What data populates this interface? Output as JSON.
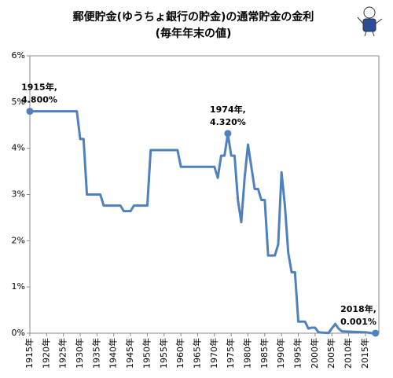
{
  "chart_data": {
    "type": "line",
    "title": "郵便貯金(ゆうちょ銀行の貯金)の通常貯金の金利",
    "subtitle": "(毎年年末の値)",
    "x": [
      1915,
      1929,
      1930,
      1931,
      1932,
      1936,
      1937,
      1942,
      1943,
      1945,
      1946,
      1950,
      1951,
      1959,
      1960,
      1970,
      1971,
      1972,
      1973,
      1974,
      1975,
      1976,
      1977,
      1978,
      1979,
      1980,
      1981,
      1982,
      1983,
      1984,
      1985,
      1986,
      1988,
      1989,
      1990,
      1991,
      1992,
      1993,
      1994,
      1995,
      1997,
      1998,
      1999,
      2000,
      2001,
      2004,
      2006,
      2007,
      2008,
      2015,
      2016,
      2017,
      2018
    ],
    "series": [
      {
        "color": "#4f81bd",
        "values": [
          4.8,
          4.8,
          4.2,
          4.2,
          3.0,
          3.0,
          2.76,
          2.76,
          2.64,
          2.64,
          2.76,
          2.76,
          3.96,
          3.96,
          3.6,
          3.6,
          3.36,
          3.84,
          3.84,
          4.32,
          3.84,
          3.84,
          2.88,
          2.4,
          3.36,
          4.08,
          3.6,
          3.12,
          3.12,
          2.88,
          2.88,
          1.68,
          1.68,
          1.92,
          3.48,
          2.76,
          1.74,
          1.32,
          1.32,
          0.25,
          0.25,
          0.1,
          0.12,
          0.12,
          0.02,
          0.005,
          0.2,
          0.1,
          0.04,
          0.02,
          0.01,
          0.001,
          0.001
        ]
      }
    ],
    "xlim": [
      1915,
      2019
    ],
    "xticks": [
      {
        "value": 1915,
        "label": "1915年"
      },
      {
        "value": 1920,
        "label": "1920年"
      },
      {
        "value": 1925,
        "label": "1925年"
      },
      {
        "value": 1930,
        "label": "1930年"
      },
      {
        "value": 1935,
        "label": "1935年"
      },
      {
        "value": 1940,
        "label": "1940年"
      },
      {
        "value": 1945,
        "label": "1945年"
      },
      {
        "value": 1950,
        "label": "1950年"
      },
      {
        "value": 1955,
        "label": "1955年"
      },
      {
        "value": 1960,
        "label": "1960年"
      },
      {
        "value": 1965,
        "label": "1965年"
      },
      {
        "value": 1970,
        "label": "1970年"
      },
      {
        "value": 1975,
        "label": "1975年"
      },
      {
        "value": 1980,
        "label": "1980年"
      },
      {
        "value": 1985,
        "label": "1985年"
      },
      {
        "value": 1990,
        "label": "1990年"
      },
      {
        "value": 1995,
        "label": "1995年"
      },
      {
        "value": 2000,
        "label": "2000年"
      },
      {
        "value": 2005,
        "label": "2005年"
      },
      {
        "value": 2010,
        "label": "2010年"
      },
      {
        "value": 2015,
        "label": "2015年"
      }
    ],
    "ylim": [
      0,
      6
    ],
    "yticks": [
      {
        "value": 0,
        "label": "0%"
      },
      {
        "value": 1,
        "label": "1%"
      },
      {
        "value": 2,
        "label": "2%"
      },
      {
        "value": 3,
        "label": "3%"
      },
      {
        "value": 4,
        "label": "4%"
      },
      {
        "value": 5,
        "label": "5%"
      },
      {
        "value": 6,
        "label": "6%"
      }
    ],
    "annotations": [
      {
        "x": 1915,
        "y": 4.8,
        "lines": [
          "1915年,",
          "4.800%"
        ]
      },
      {
        "x": 1974,
        "y": 4.32,
        "lines": [
          "1974年,",
          "4.320%"
        ]
      },
      {
        "x": 2018,
        "y": 0.001,
        "lines": [
          "2018年,",
          "0.001%"
        ]
      }
    ]
  }
}
